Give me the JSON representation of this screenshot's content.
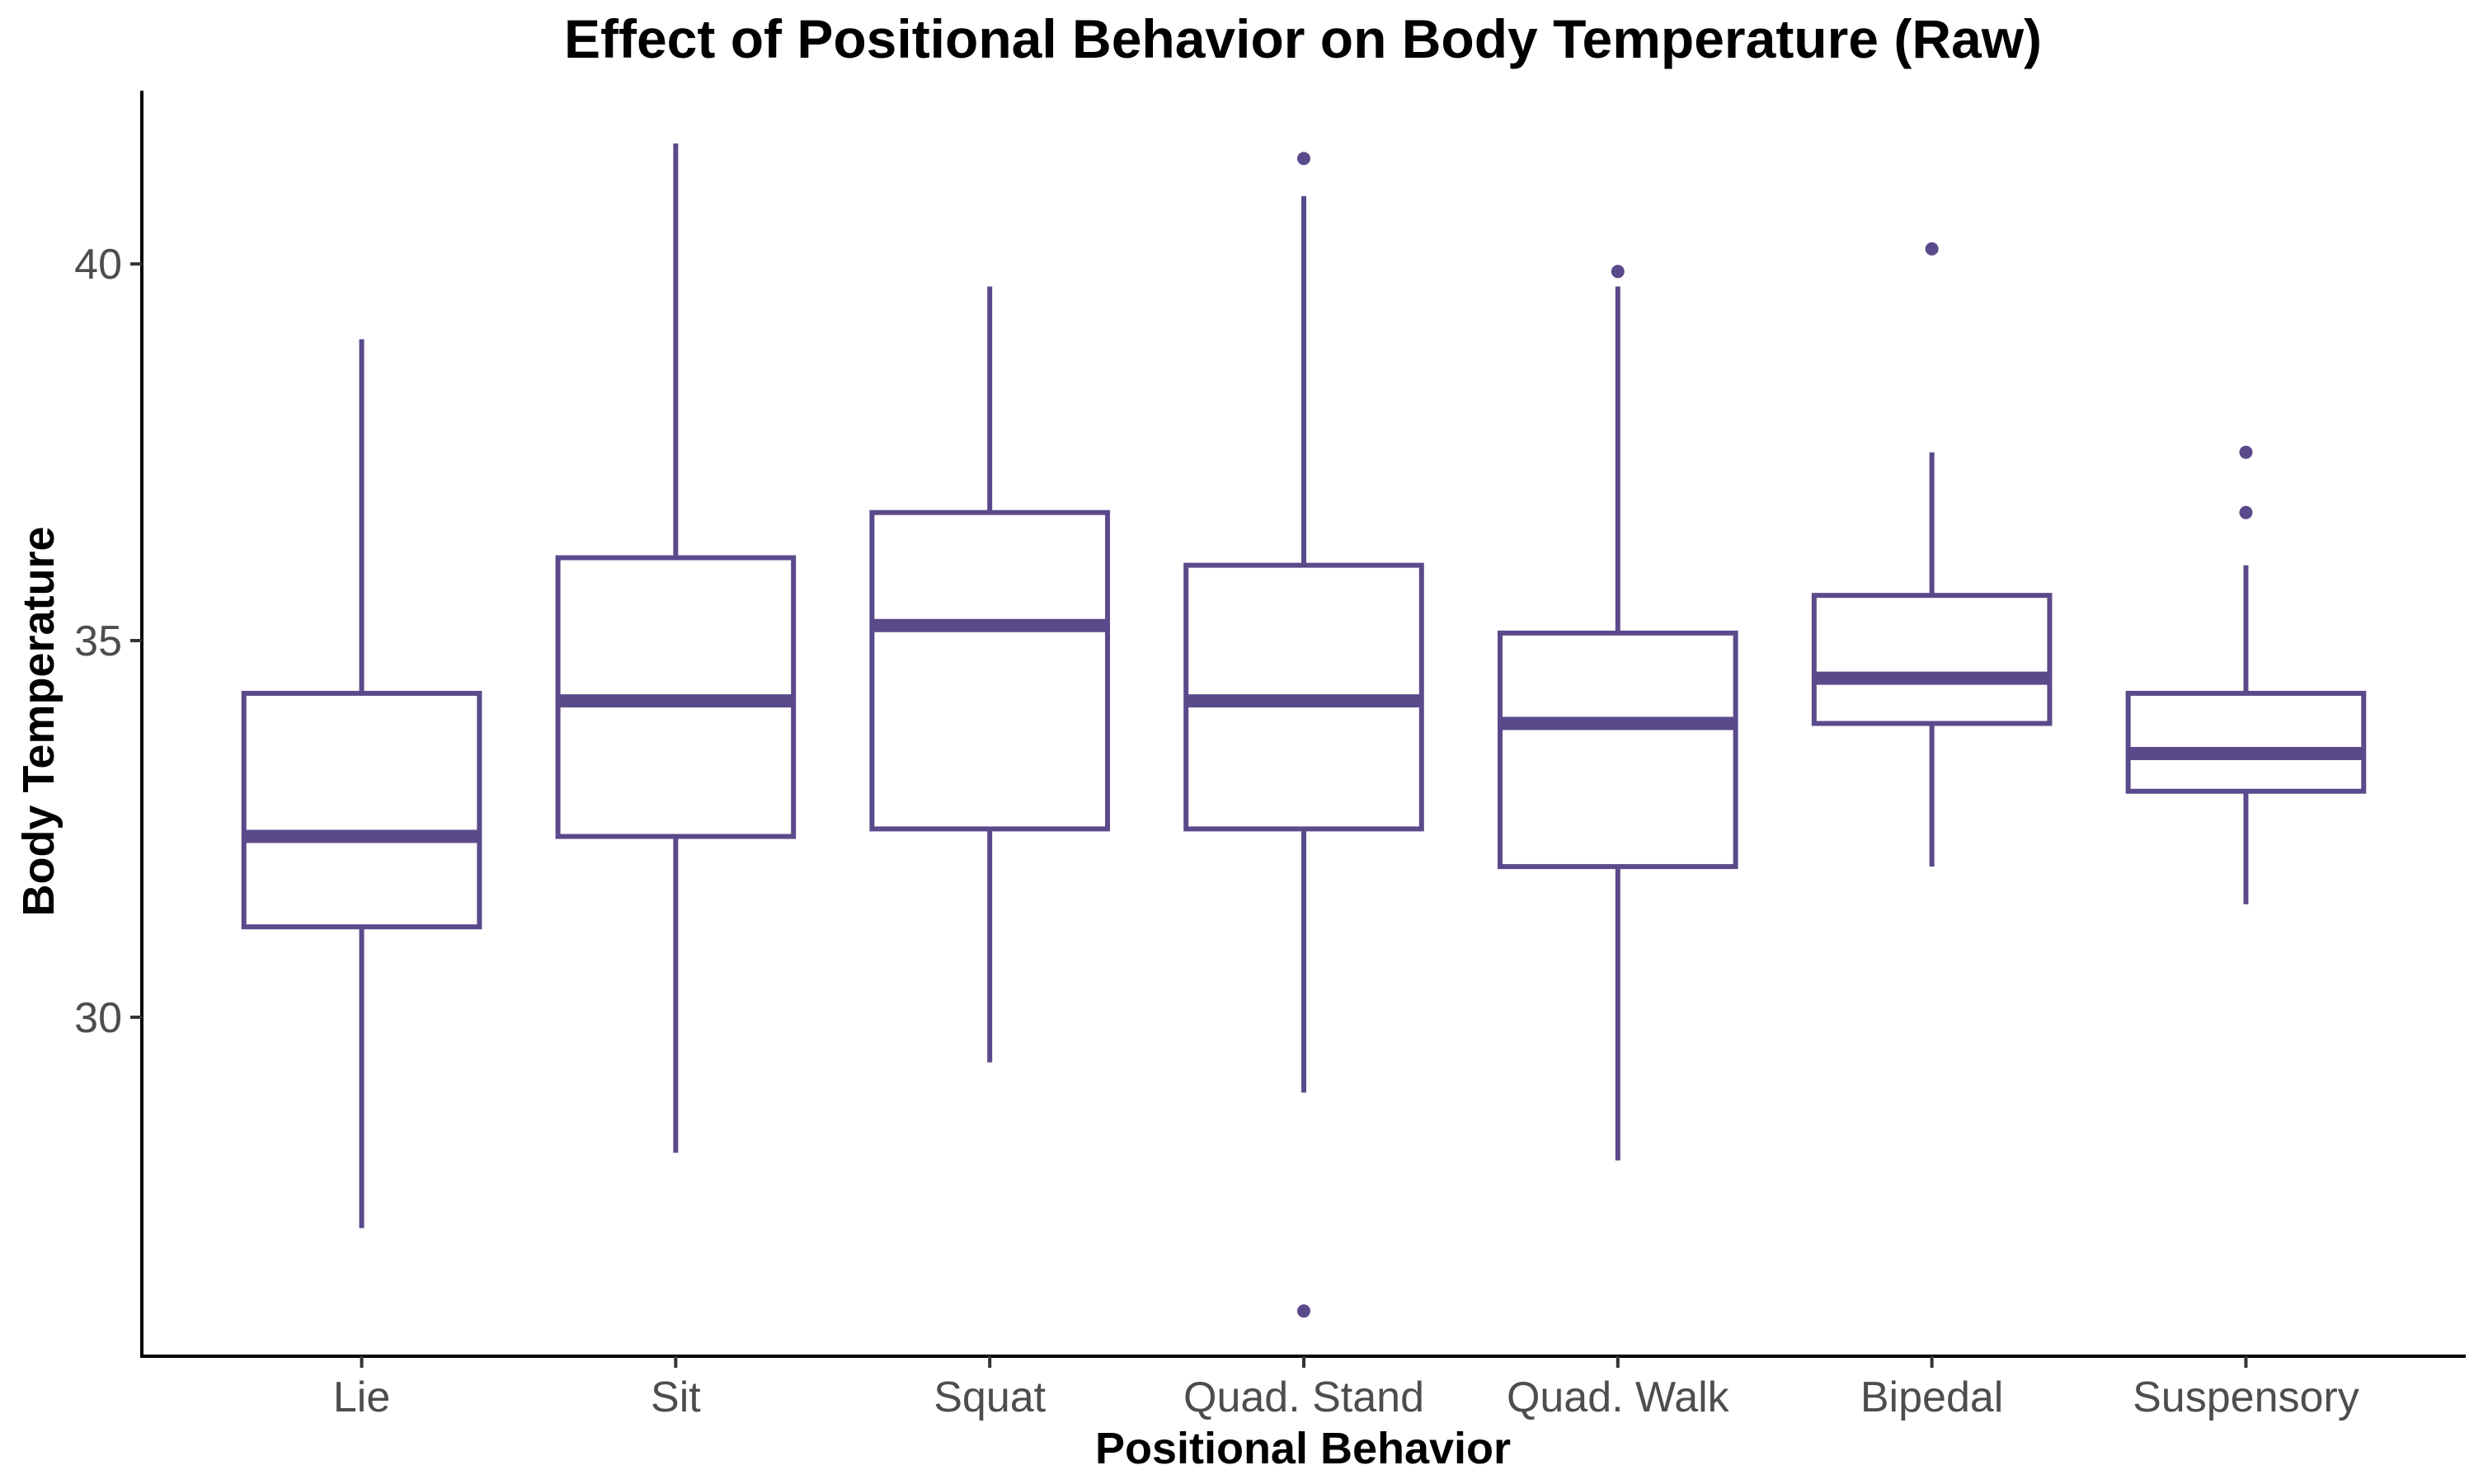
{
  "chart_data": {
    "type": "boxplot",
    "title": "Effect of Positional Behavior on Body Temperature (Raw)",
    "xlabel": "Positional Behavior",
    "ylabel": "Body Temperature",
    "ylim": [
      25.5,
      42.3
    ],
    "yticks": [
      30,
      35,
      40
    ],
    "grid": false,
    "color": "#5b4a8b",
    "categories": [
      "Lie",
      "Sit",
      "Squat",
      "Quad. Stand",
      "Quad. Walk",
      "Bipedal",
      "Suspensory"
    ],
    "boxes": [
      {
        "category": "Lie",
        "whisker_low": 27.2,
        "q1": 31.2,
        "median": 32.4,
        "q3": 34.3,
        "whisker_high": 39.0,
        "outliers": []
      },
      {
        "category": "Sit",
        "whisker_low": 28.2,
        "q1": 32.4,
        "median": 34.2,
        "q3": 36.1,
        "whisker_high": 41.6,
        "outliers": []
      },
      {
        "category": "Squat",
        "whisker_low": 29.4,
        "q1": 32.5,
        "median": 35.2,
        "q3": 36.7,
        "whisker_high": 39.7,
        "outliers": []
      },
      {
        "category": "Quad. Stand",
        "whisker_low": 29.0,
        "q1": 32.5,
        "median": 34.2,
        "q3": 36.0,
        "whisker_high": 40.9,
        "outliers": [
          26.1,
          41.4
        ]
      },
      {
        "category": "Quad. Walk",
        "whisker_low": 28.1,
        "q1": 32.0,
        "median": 33.9,
        "q3": 35.1,
        "whisker_high": 39.7,
        "outliers": [
          39.9
        ]
      },
      {
        "category": "Bipedal",
        "whisker_low": 32.0,
        "q1": 33.9,
        "median": 34.5,
        "q3": 35.6,
        "whisker_high": 37.5,
        "outliers": [
          40.2
        ]
      },
      {
        "category": "Suspensory",
        "whisker_low": 31.5,
        "q1": 33.0,
        "median": 33.5,
        "q3": 34.3,
        "whisker_high": 36.0,
        "outliers": [
          36.7,
          37.5
        ]
      }
    ]
  }
}
